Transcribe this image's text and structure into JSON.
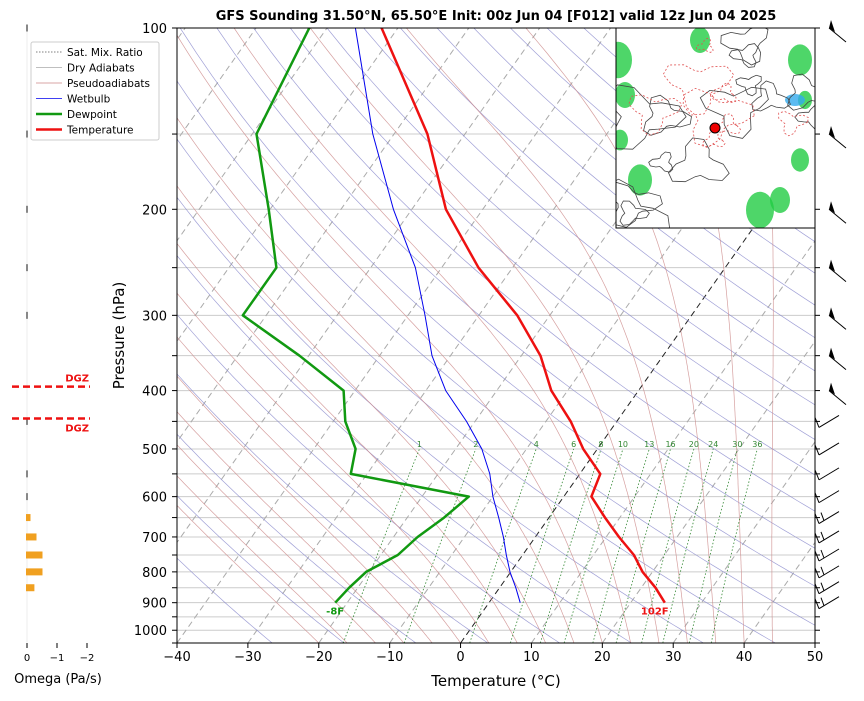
{
  "title": "GFS Sounding 31.50°N, 65.50°E Init: 00z Jun 04 [F012] valid 12z Jun 04 2025",
  "colors": {
    "temperature": "#ee1111",
    "dewpoint": "#119911",
    "wetbulb": "#0000ee",
    "dry_adiabat": "#8888cc",
    "moist_adiabat": "#cc8888",
    "mixing_ratio": "#338833",
    "dgz": "#ee1111",
    "omega_bar": "#f0a020",
    "omega_tick": "#888888"
  },
  "chart_data": {
    "type": "line",
    "xlabel": "Temperature (°C)",
    "ylabel": "Pressure (hPa)",
    "xlim": [
      -40,
      50
    ],
    "ylim": [
      1050,
      100
    ],
    "y_scale": "log",
    "skew": true,
    "x_ticks": [
      "−40",
      "−30",
      "−20",
      "−10",
      "0",
      "10",
      "20",
      "30",
      "40",
      "50"
    ],
    "y_ticks": [
      "100",
      "200",
      "300",
      "400",
      "500",
      "600",
      "700",
      "800",
      "900",
      "1000"
    ],
    "legend": [
      "Sat. Mix. Ratio",
      "Dry Adiabats",
      "Pseudoadiabats",
      "Wetbulb",
      "Dewpoint",
      "Temperature"
    ],
    "legend_position": "upper-left",
    "series": [
      {
        "name": "Temperature",
        "p": [
          900,
          850,
          800,
          750,
          700,
          650,
          600,
          550,
          500,
          450,
          400,
          350,
          300,
          250,
          200,
          150,
          100
        ],
        "t": [
          24.8,
          22.0,
          18.6,
          15.7,
          11.8,
          7.9,
          3.9,
          2.9,
          -2.0,
          -6.5,
          -12.3,
          -17.3,
          -24.6,
          -34.8,
          -45.2,
          -55.3,
          -72.3
        ]
      },
      {
        "name": "Dewpoint",
        "p": [
          900,
          850,
          800,
          750,
          700,
          650,
          600,
          550,
          500,
          450,
          400,
          350,
          300,
          250,
          200,
          150,
          100
        ],
        "t": [
          -21.7,
          -21.2,
          -20.4,
          -17.6,
          -16.6,
          -14.8,
          -13.4,
          -32.3,
          -34.1,
          -38.3,
          -41.6,
          -51.3,
          -63.3,
          -63.3,
          -70.2,
          -79.4,
          -82.5
        ]
      },
      {
        "name": "Wetbulb",
        "p": [
          900,
          850,
          800,
          750,
          700,
          650,
          600,
          550,
          500,
          450,
          400,
          350,
          300,
          250,
          200,
          150,
          100
        ],
        "t": [
          4.4,
          2.3,
          -0.1,
          -2.3,
          -4.5,
          -7.1,
          -10.0,
          -12.7,
          -16.3,
          -21.2,
          -27.2,
          -32.6,
          -37.6,
          -43.7,
          -52.6,
          -63.0,
          -76.0
        ]
      }
    ],
    "surface_labels": {
      "dewpoint": "-8F",
      "temperature": "102F"
    },
    "mixing_ratio_labels": [
      "1",
      "2",
      "4",
      "6",
      "8",
      "10",
      "13",
      "16",
      "20",
      "24",
      "30",
      "36"
    ],
    "mixing_ratio_values": [
      1,
      2,
      4,
      6,
      8,
      10,
      13,
      16,
      20,
      24,
      30,
      36
    ],
    "omega": {
      "xlabel": "Omega (Pa/s)",
      "x_ticks": [
        "0",
        "−1",
        "−2"
      ],
      "levels": [
        {
          "p": 100,
          "value": -0.02
        },
        {
          "p": 150,
          "value": -0.05
        },
        {
          "p": 200,
          "value": -0.03
        },
        {
          "p": 250,
          "value": -0.05
        },
        {
          "p": 300,
          "value": -0.02
        },
        {
          "p": 450,
          "value": -0.05
        },
        {
          "p": 550,
          "value": -0.03
        },
        {
          "p": 600,
          "value": -0.04
        },
        {
          "p": 650,
          "value": -0.15
        },
        {
          "p": 700,
          "value": -0.35
        },
        {
          "p": 750,
          "value": -0.55
        },
        {
          "p": 800,
          "value": -0.55
        },
        {
          "p": 850,
          "value": -0.28
        }
      ],
      "dgz_label": "DGZ",
      "dgz_bounds": [
        394,
        445
      ]
    },
    "wind_barb_levels": [
      100,
      150,
      200,
      250,
      300,
      350,
      400,
      450,
      500,
      550,
      600,
      650,
      700,
      750,
      800,
      850,
      900
    ]
  },
  "inset_map": {
    "present": true,
    "location_marker": "red-dot"
  }
}
